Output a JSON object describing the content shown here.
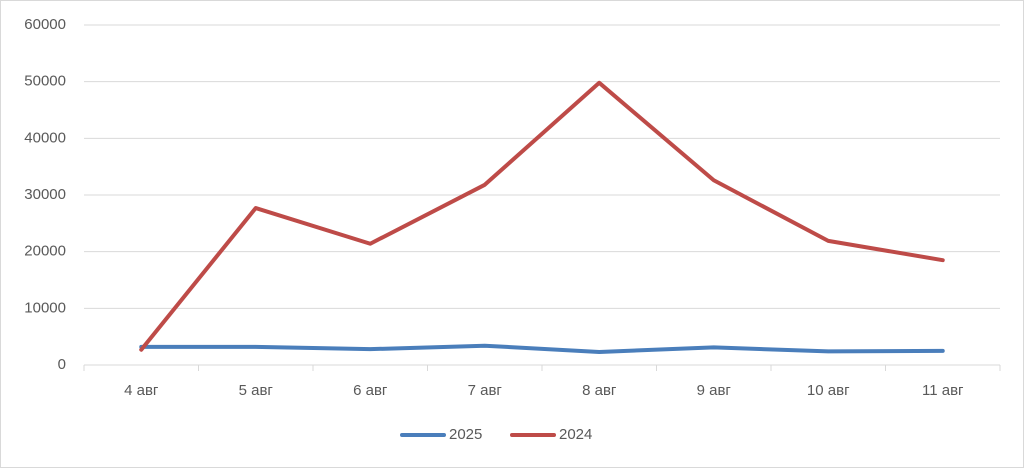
{
  "chart_data": {
    "type": "line",
    "categories": [
      "4 авг",
      "5 авг",
      "6 авг",
      "7 авг",
      "8 авг",
      "9 авг",
      "10 авг",
      "11 авг"
    ],
    "series": [
      {
        "name": "2025",
        "color": "#4a7ebb",
        "values": [
          3200,
          3200,
          2800,
          3400,
          2300,
          3100,
          2400,
          2500
        ]
      },
      {
        "name": "2024",
        "color": "#be4b48",
        "values": [
          2700,
          27700,
          21400,
          31800,
          49800,
          32600,
          21900,
          18500
        ]
      }
    ],
    "ylim": [
      0,
      60000
    ],
    "yticks": [
      0,
      10000,
      20000,
      30000,
      40000,
      50000,
      60000
    ],
    "grid": true,
    "legend": "bottom"
  }
}
